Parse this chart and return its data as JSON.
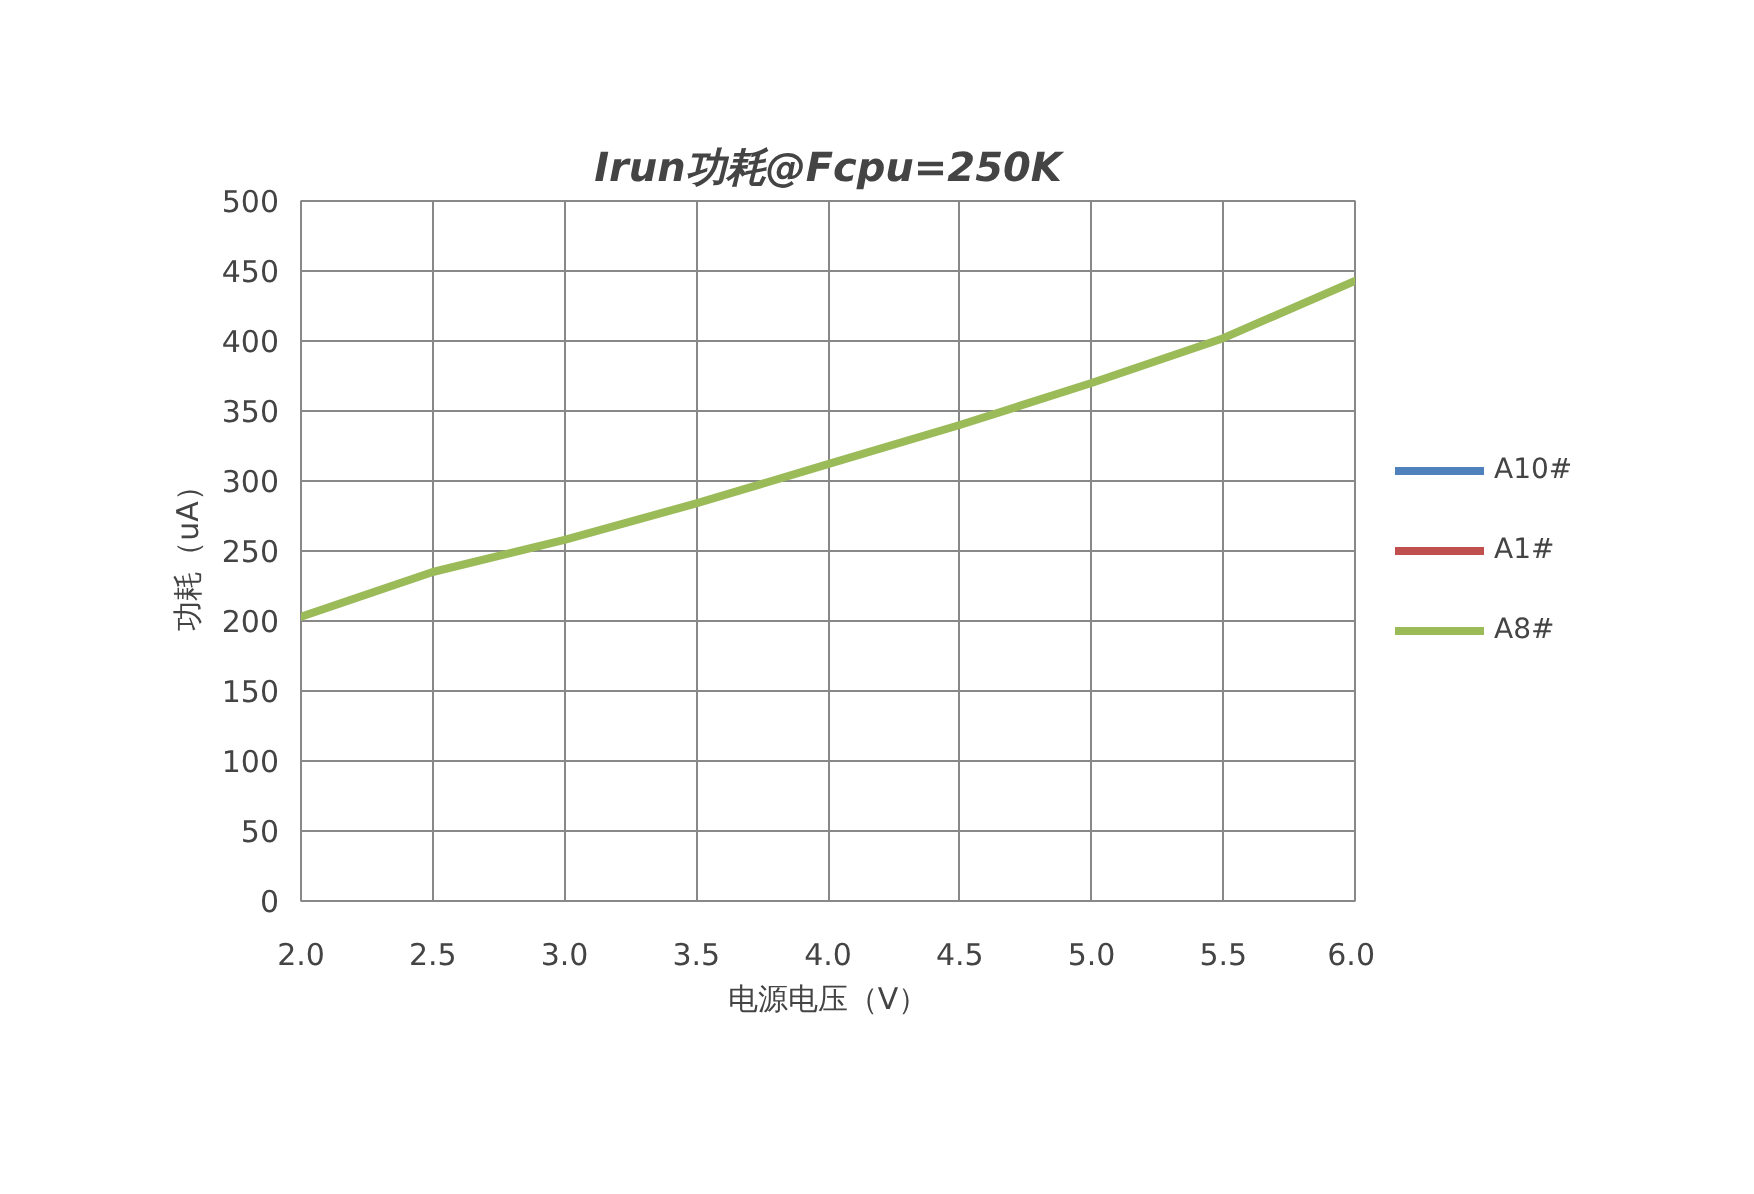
{
  "chart_data": {
    "type": "line",
    "title": "Irun功耗@Fcpu=250K",
    "xlabel": "电源电压（V）",
    "ylabel": "功耗（uA）",
    "x": [
      2.0,
      2.5,
      3.0,
      3.5,
      4.0,
      4.5,
      5.0,
      5.5,
      6.0
    ],
    "series": [
      {
        "name": "A10#",
        "color": "#4f81bd",
        "values": [
          null,
          null,
          null,
          null,
          null,
          null,
          null,
          null,
          null
        ]
      },
      {
        "name": "A1#",
        "color": "#c0504d",
        "values": [
          null,
          null,
          null,
          null,
          null,
          null,
          null,
          null,
          null
        ]
      },
      {
        "name": "A8#",
        "color": "#9bbb59",
        "values": [
          203,
          235,
          258,
          284,
          312,
          340,
          370,
          402,
          443
        ]
      }
    ],
    "xlim": [
      2.0,
      6.0
    ],
    "ylim": [
      0,
      500
    ],
    "xticks": [
      {
        "value": 2.0,
        "label": "2.0"
      },
      {
        "value": 2.5,
        "label": "2.5"
      },
      {
        "value": 3.0,
        "label": "3.0"
      },
      {
        "value": 3.5,
        "label": "3.5"
      },
      {
        "value": 4.0,
        "label": "4.0"
      },
      {
        "value": 4.5,
        "label": "4.5"
      },
      {
        "value": 5.0,
        "label": "5.0"
      },
      {
        "value": 5.5,
        "label": "5.5"
      },
      {
        "value": 6.0,
        "label": "6.0"
      }
    ],
    "yticks": [
      0,
      50,
      100,
      150,
      200,
      250,
      300,
      350,
      400,
      450,
      500
    ],
    "grid": true,
    "legend": "right",
    "line_style": "solid"
  }
}
